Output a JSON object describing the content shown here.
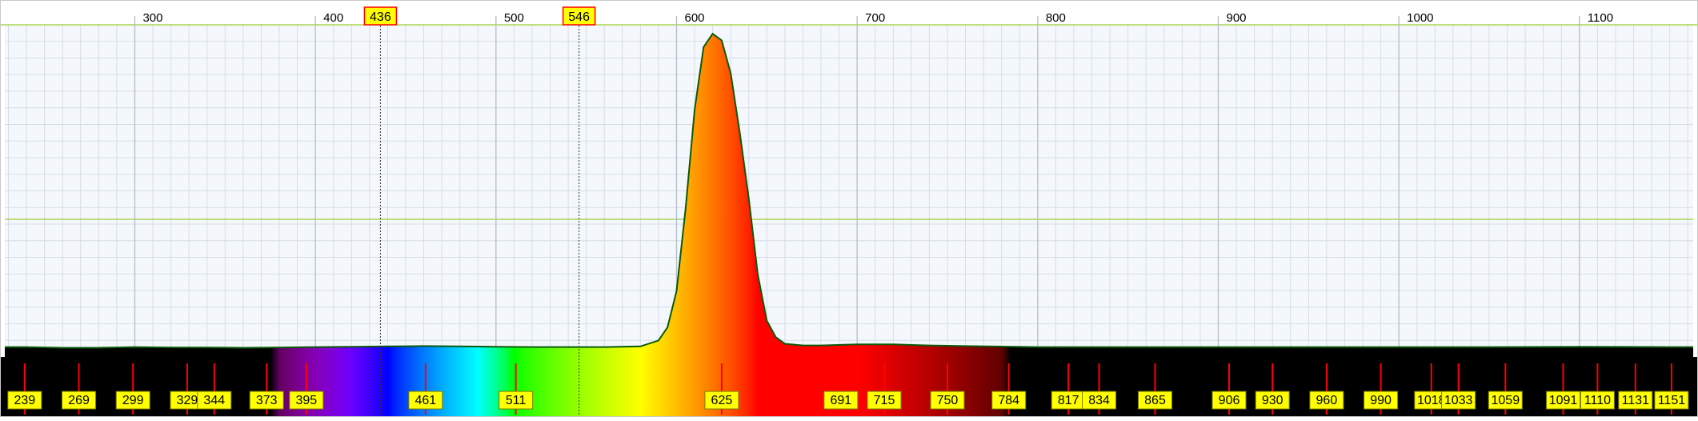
{
  "chart_data": {
    "type": "area",
    "title": "",
    "xlabel": "",
    "ylabel": "",
    "x_unit": "nm",
    "xlim": [
      228,
      1163
    ],
    "ylim": [
      0,
      1
    ],
    "grid": true,
    "x_ticks": [
      300,
      400,
      500,
      600,
      700,
      800,
      900,
      1000,
      1100
    ],
    "reference_lines": [
      {
        "label": "436",
        "x": 436
      },
      {
        "label": "546",
        "x": 546
      }
    ],
    "series": [
      {
        "x": [
          228,
          240,
          260,
          280,
          300,
          320,
          340,
          360,
          380,
          400,
          420,
          440,
          460,
          480,
          500,
          520,
          540,
          560,
          580,
          590,
          595,
          600,
          605,
          610,
          615,
          620,
          625,
          630,
          635,
          640,
          645,
          650,
          655,
          660,
          670,
          680,
          700,
          720,
          740,
          760,
          800,
          850,
          900,
          950,
          1000,
          1050,
          1100,
          1150,
          1163
        ],
        "values": [
          0.03,
          0.03,
          0.028,
          0.028,
          0.03,
          0.029,
          0.029,
          0.028,
          0.029,
          0.03,
          0.031,
          0.032,
          0.033,
          0.032,
          0.031,
          0.03,
          0.03,
          0.03,
          0.032,
          0.05,
          0.09,
          0.2,
          0.45,
          0.75,
          0.94,
          0.98,
          0.96,
          0.86,
          0.68,
          0.48,
          0.25,
          0.11,
          0.06,
          0.04,
          0.035,
          0.035,
          0.038,
          0.038,
          0.035,
          0.033,
          0.03,
          0.03,
          0.03,
          0.03,
          0.03,
          0.03,
          0.031,
          0.03,
          0.03
        ]
      }
    ],
    "band_labels": [
      "239",
      "269",
      "299",
      "329",
      "344",
      "373",
      "395",
      "461",
      "511",
      "625",
      "691",
      "715",
      "750",
      "784",
      "817",
      "834",
      "865",
      "906",
      "930",
      "960",
      "990",
      "1018",
      "1033",
      "1059",
      "1091",
      "1110",
      "1131",
      "1151"
    ],
    "colors": {
      "curve": "#0a5a0a",
      "grid_major": "#b4bcc6",
      "grid_minor": "#d7dde5",
      "grid_mid": "#9acd32",
      "plot_bg": "#f4f8fd",
      "spectrum_bg": "#000000",
      "label_fill": "#ffff00",
      "label_border": "#7a7a00",
      "tick_red": "#ff0000",
      "ref_box_border": "#ff0000"
    }
  }
}
